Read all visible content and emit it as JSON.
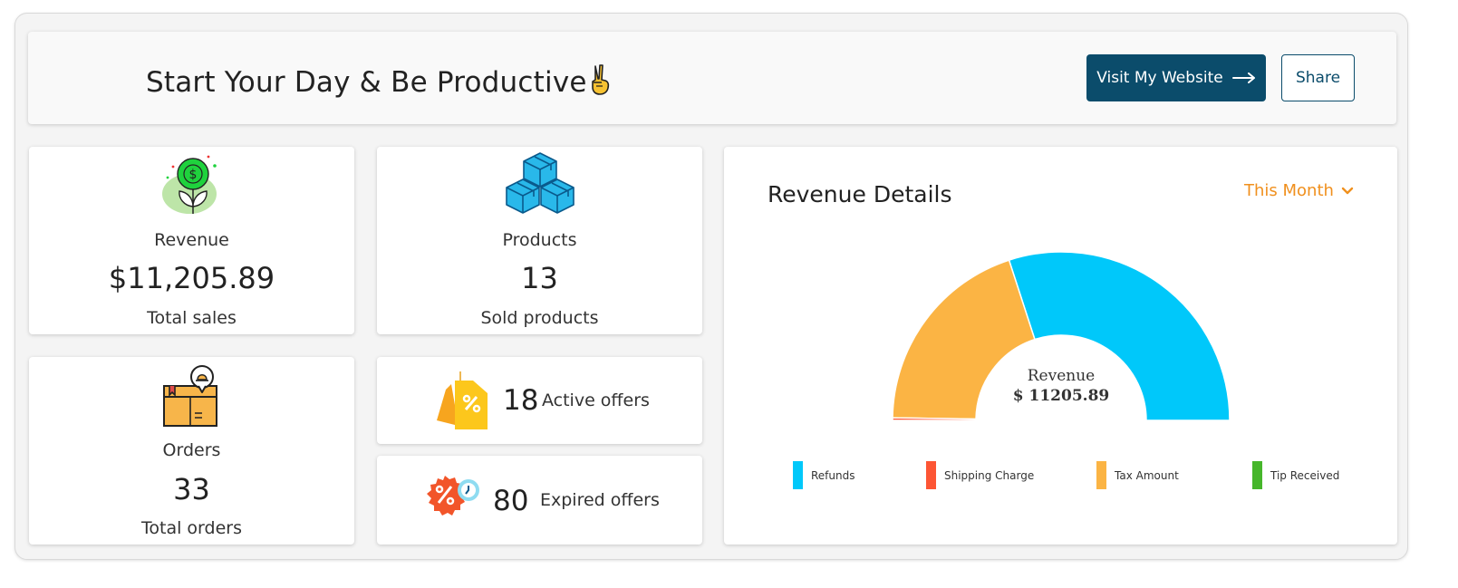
{
  "header": {
    "title": "Start Your Day & Be Productive",
    "visit_label": "Visit My Website",
    "share_label": "Share"
  },
  "stats": {
    "revenue": {
      "label": "Revenue",
      "value": "$11,205.89",
      "sub": "Total sales"
    },
    "products": {
      "label": "Products",
      "value": "13",
      "sub": "Sold products"
    },
    "orders": {
      "label": "Orders",
      "value": "33",
      "sub": "Total orders"
    }
  },
  "offers": {
    "active": {
      "count": "18",
      "label": "Active offers"
    },
    "expired": {
      "count": "80",
      "label": "Expired offers"
    }
  },
  "revenue_details": {
    "title": "Revenue Details",
    "period": "This Month",
    "center_label": "Revenue",
    "center_value": "$ 11205.89"
  },
  "colors": {
    "brand": "#0b4c6b",
    "accent": "#f0901e",
    "refunds": "#00c8fa",
    "shipping": "#fd5534",
    "tax": "#fbb444",
    "tip": "#46b62b"
  },
  "icons": {
    "revenue": "money-plant-icon",
    "products": "boxes-icon",
    "orders": "package-notification-icon",
    "active": "price-tag-percent-icon",
    "expired": "discount-badge-clock-icon"
  },
  "chart_data": {
    "type": "pie",
    "subtype": "semi-donut",
    "categories": [
      "Refunds",
      "Shipping Charge",
      "Tax Amount",
      "Tip Received"
    ],
    "values": [
      0.6,
      0.005,
      0.395,
      0
    ],
    "colors": [
      "#00c8fa",
      "#fd5534",
      "#fbb444",
      "#46b62b"
    ],
    "legend_position": "bottom"
  }
}
